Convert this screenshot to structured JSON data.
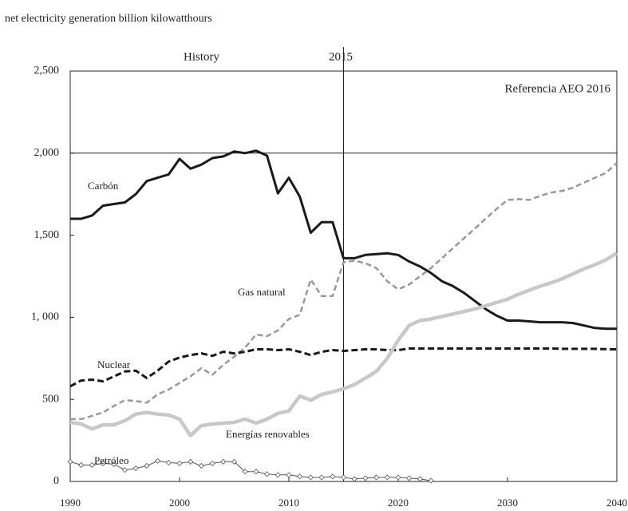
{
  "chart_data": {
    "type": "line",
    "title": "net electricity generation billion kilowatthours",
    "annotations": [
      "History",
      "2015",
      "Referencia AEO 2016"
    ],
    "vline": 2015,
    "hline": 2000,
    "x": [
      1990,
      1991,
      1992,
      1993,
      1994,
      1995,
      1996,
      1997,
      1998,
      1999,
      2000,
      2001,
      2002,
      2003,
      2004,
      2005,
      2006,
      2007,
      2008,
      2009,
      2010,
      2011,
      2012,
      2013,
      2014,
      2015,
      2016,
      2017,
      2018,
      2019,
      2020,
      2021,
      2022,
      2023,
      2024,
      2025,
      2026,
      2027,
      2028,
      2029,
      2030,
      2031,
      2032,
      2033,
      2034,
      2035,
      2036,
      2037,
      2038,
      2039,
      2040
    ],
    "series": [
      {
        "name": "Carbón",
        "color": "#1a1a1a",
        "values": [
          1600,
          1600,
          1620,
          1680,
          1690,
          1700,
          1750,
          1830,
          1850,
          1870,
          1965,
          1905,
          1930,
          1970,
          1980,
          2010,
          2000,
          2015,
          1985,
          1755,
          1850,
          1735,
          1515,
          1580,
          1580,
          1360,
          1360,
          1380,
          1385,
          1390,
          1380,
          1340,
          1310,
          1270,
          1220,
          1190,
          1150,
          1100,
          1050,
          1010,
          980,
          980,
          975,
          970,
          970,
          970,
          965,
          950,
          935,
          930,
          930
        ]
      },
      {
        "name": "Gas natural",
        "color": "#999999",
        "values": [
          380,
          380,
          400,
          420,
          460,
          495,
          490,
          480,
          530,
          560,
          600,
          640,
          690,
          650,
          710,
          760,
          815,
          895,
          885,
          920,
          990,
          1015,
          1230,
          1130,
          1130,
          1335,
          1345,
          1330,
          1300,
          1220,
          1170,
          1200,
          1250,
          1300,
          1360,
          1420,
          1480,
          1540,
          1600,
          1660,
          1715,
          1720,
          1715,
          1740,
          1760,
          1770,
          1790,
          1820,
          1850,
          1880,
          1940
        ]
      },
      {
        "name": "Nuclear",
        "color": "#1a1a1a",
        "values": [
          580,
          615,
          620,
          610,
          640,
          670,
          675,
          630,
          675,
          730,
          755,
          770,
          780,
          765,
          790,
          780,
          790,
          805,
          805,
          800,
          805,
          790,
          770,
          790,
          800,
          795,
          800,
          805,
          805,
          800,
          800,
          810,
          810,
          810,
          810,
          810,
          810,
          810,
          810,
          810,
          810,
          810,
          810,
          810,
          810,
          808,
          808,
          808,
          808,
          806,
          805
        ]
      },
      {
        "name": "Energías renovables",
        "color": "#c8c8c8",
        "values": [
          360,
          350,
          320,
          345,
          345,
          370,
          410,
          420,
          410,
          405,
          380,
          280,
          340,
          350,
          355,
          360,
          380,
          355,
          380,
          415,
          430,
          520,
          495,
          530,
          545,
          565,
          590,
          630,
          670,
          750,
          860,
          950,
          980,
          990,
          1005,
          1020,
          1035,
          1050,
          1070,
          1090,
          1110,
          1140,
          1165,
          1190,
          1210,
          1235,
          1265,
          1295,
          1320,
          1350,
          1390
        ]
      },
      {
        "name": "Petróleo",
        "color": "#555555",
        "values": [
          120,
          100,
          100,
          110,
          105,
          70,
          80,
          95,
          125,
          115,
          110,
          120,
          95,
          110,
          120,
          120,
          60,
          60,
          45,
          40,
          40,
          30,
          25,
          25,
          30,
          25,
          15,
          20,
          25,
          25,
          25,
          20,
          15,
          5,
          null,
          null,
          null,
          null,
          null,
          null,
          null,
          null,
          null,
          null,
          null,
          null,
          null,
          null,
          null,
          null,
          null
        ]
      }
    ],
    "xlim": [
      1990,
      2040
    ],
    "xticks": [
      1990,
      2000,
      2010,
      2020,
      2030,
      2040
    ],
    "ylim": [
      0,
      2500
    ],
    "yticks": [
      0,
      500,
      {
        "value": 1000,
        "label": "1, 000"
      },
      {
        "value": 1500,
        "label": "1,500"
      },
      {
        "value": 2000,
        "label": "2,000"
      },
      {
        "value": 2500,
        "label": "2,500"
      }
    ]
  }
}
